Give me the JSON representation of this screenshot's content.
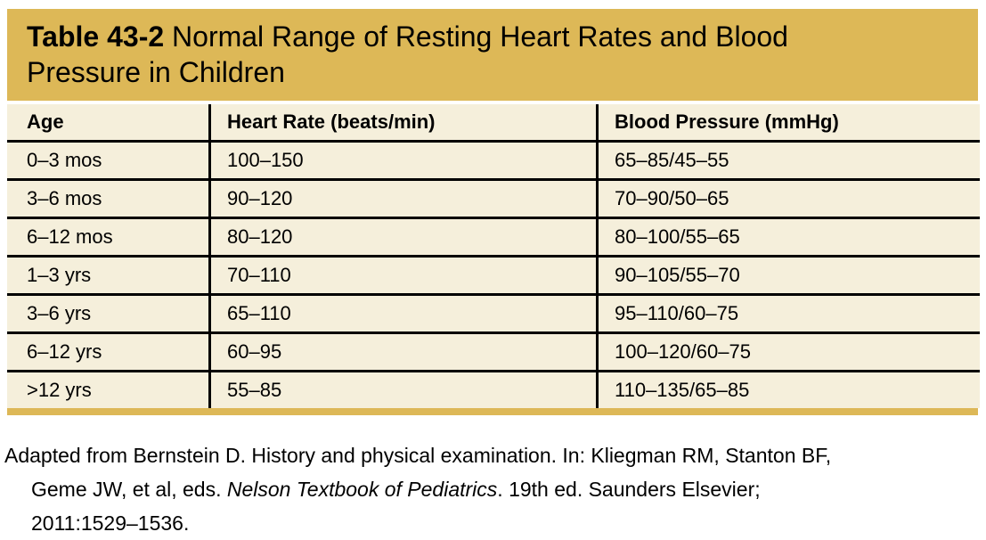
{
  "title": {
    "table_number": "Table 43-2",
    "line1_rest": "Normal Range of Resting Heart Rates and Blood",
    "line2": "Pressure in Children"
  },
  "table": {
    "columns": [
      "Age",
      "Heart Rate (beats/min)",
      "Blood Pressure (mmHg)"
    ],
    "rows": [
      [
        "0–3 mos",
        "100–150",
        "65–85/45–55"
      ],
      [
        "3–6 mos",
        "90–120",
        "70–90/50–65"
      ],
      [
        "6–12 mos",
        "80–120",
        "80–100/55–65"
      ],
      [
        "1–3 yrs",
        "70–110",
        "90–105/55–70"
      ],
      [
        "3–6 yrs",
        "65–110",
        "95–110/60–75"
      ],
      [
        "6–12 yrs",
        "60–95",
        "100–120/60–75"
      ],
      [
        ">12 yrs",
        "55–85",
        "110–135/65–85"
      ]
    ]
  },
  "footnote": {
    "line1": "Adapted from Bernstein D. History and physical examination. In: Kliegman RM, Stanton BF,",
    "line2_pre": "Geme JW, et al, eds. ",
    "line2_italic": "Nelson Textbook of Pediatrics",
    "line2_post": ". 19th ed. Saunders Elsevier;",
    "line3": "2011:1529–1536."
  },
  "colors": {
    "banner_gold": "#ddb857",
    "table_cream": "#f5efdb",
    "text_black": "#000000"
  }
}
